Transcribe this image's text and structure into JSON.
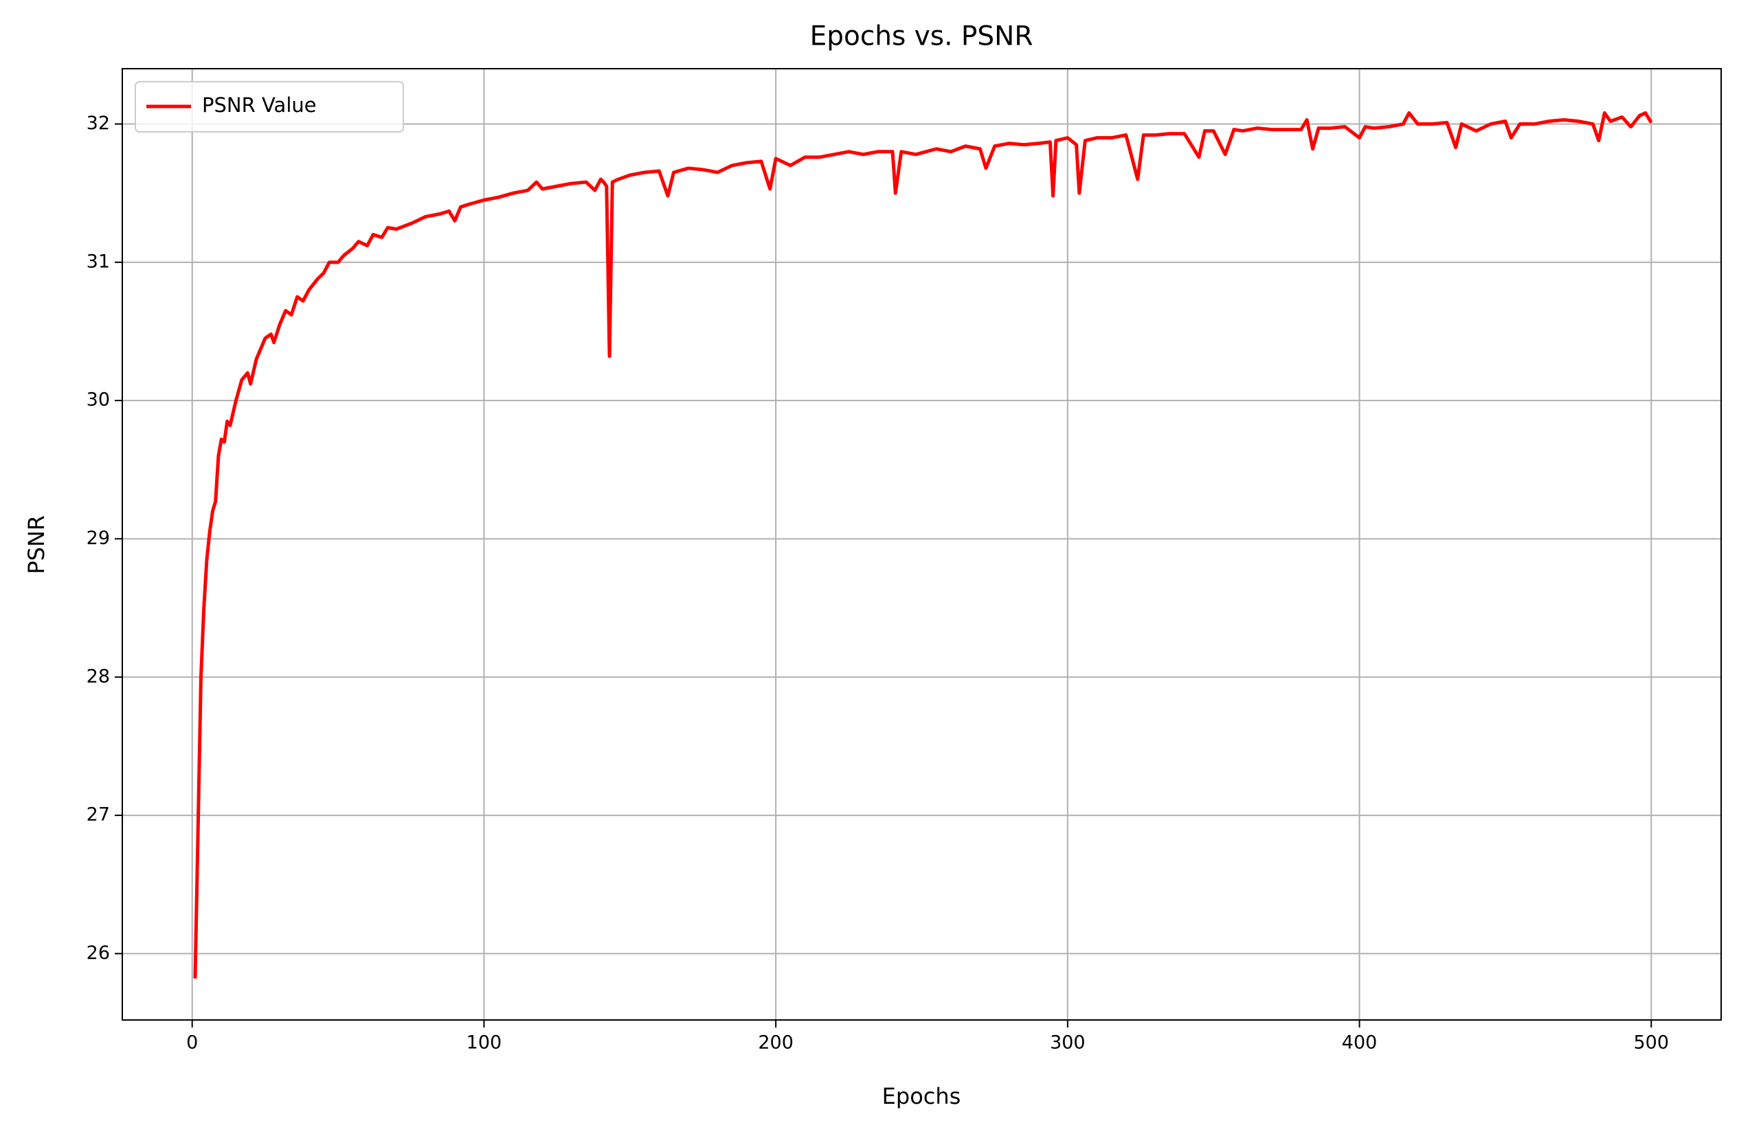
{
  "chart_data": {
    "type": "line",
    "title": "Epochs vs. PSNR",
    "x_label": "Epochs",
    "y_label": "PSNR",
    "x": [
      1,
      2,
      3,
      4,
      5,
      6,
      7,
      8,
      9,
      10,
      11,
      12,
      13,
      15,
      17,
      19,
      20,
      22,
      25,
      27,
      28,
      30,
      32,
      34,
      36,
      38,
      40,
      43,
      45,
      47,
      50,
      52,
      55,
      57,
      60,
      62,
      65,
      67,
      70,
      75,
      80,
      85,
      88,
      90,
      92,
      95,
      100,
      105,
      110,
      115,
      118,
      120,
      125,
      130,
      135,
      138,
      140,
      141,
      142,
      143,
      144,
      146,
      150,
      155,
      160,
      163,
      165,
      170,
      175,
      180,
      185,
      190,
      195,
      198,
      200,
      205,
      210,
      215,
      220,
      225,
      230,
      235,
      240,
      241,
      243,
      248,
      255,
      260,
      265,
      270,
      272,
      275,
      280,
      285,
      290,
      294,
      295,
      296,
      300,
      303,
      304,
      306,
      310,
      315,
      320,
      324,
      326,
      330,
      335,
      340,
      345,
      347,
      350,
      354,
      357,
      360,
      365,
      370,
      375,
      380,
      382,
      384,
      386,
      390,
      395,
      400,
      402,
      405,
      410,
      415,
      417,
      420,
      425,
      430,
      433,
      435,
      440,
      445,
      450,
      452,
      455,
      460,
      465,
      470,
      475,
      480,
      482,
      484,
      486,
      490,
      493,
      496,
      498,
      500
    ],
    "series": [
      {
        "name": "PSNR Value",
        "color": "#ff0000",
        "values": [
          25.82,
          26.9,
          28.0,
          28.5,
          28.85,
          29.05,
          29.2,
          29.27,
          29.6,
          29.72,
          29.7,
          29.85,
          29.82,
          30.0,
          30.15,
          30.2,
          30.12,
          30.3,
          30.45,
          30.48,
          30.42,
          30.55,
          30.65,
          30.62,
          30.75,
          30.72,
          30.8,
          30.88,
          30.92,
          31.0,
          31.0,
          31.05,
          31.1,
          31.15,
          31.12,
          31.2,
          31.18,
          31.25,
          31.24,
          31.28,
          31.33,
          31.35,
          31.37,
          31.3,
          31.4,
          31.42,
          31.45,
          31.47,
          31.5,
          31.52,
          31.58,
          31.53,
          31.55,
          31.57,
          31.58,
          31.52,
          31.6,
          31.58,
          31.55,
          30.32,
          31.58,
          31.6,
          31.63,
          31.65,
          31.66,
          31.48,
          31.65,
          31.68,
          31.67,
          31.65,
          31.7,
          31.72,
          31.73,
          31.53,
          31.75,
          31.7,
          31.76,
          31.76,
          31.78,
          31.8,
          31.78,
          31.8,
          31.8,
          31.5,
          31.8,
          31.78,
          31.82,
          31.8,
          31.84,
          31.82,
          31.68,
          31.84,
          31.86,
          31.85,
          31.86,
          31.87,
          31.48,
          31.88,
          31.9,
          31.85,
          31.5,
          31.88,
          31.9,
          31.9,
          31.92,
          31.6,
          31.92,
          31.92,
          31.93,
          31.93,
          31.76,
          31.95,
          31.95,
          31.78,
          31.96,
          31.95,
          31.97,
          31.96,
          31.96,
          31.96,
          32.03,
          31.82,
          31.97,
          31.97,
          31.98,
          31.9,
          31.98,
          31.97,
          31.98,
          32.0,
          32.08,
          32.0,
          32.0,
          32.01,
          31.83,
          32.0,
          31.95,
          32.0,
          32.02,
          31.9,
          32.0,
          32.0,
          32.02,
          32.03,
          32.02,
          32.0,
          31.88,
          32.08,
          32.02,
          32.05,
          31.98,
          32.06,
          32.08,
          32.01
        ]
      }
    ],
    "xlim": [
      -23.95,
      523.95
    ],
    "ylim": [
      25.52,
      32.4
    ],
    "xticks": [
      0,
      100,
      200,
      300,
      400,
      500
    ],
    "yticks": [
      26,
      27,
      28,
      29,
      30,
      31,
      32
    ],
    "grid": true,
    "legend": "upper left"
  }
}
